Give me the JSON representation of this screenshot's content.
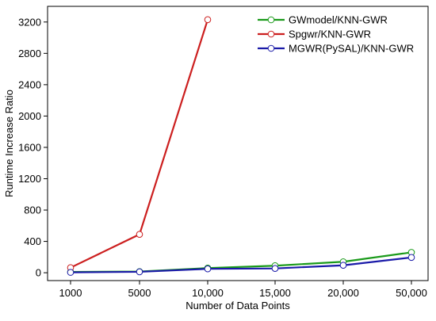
{
  "chart_data": {
    "type": "line",
    "xlabel": "Number of Data Points",
    "ylabel": "Runtime Increase Ratio",
    "categories": [
      "1000",
      "5000",
      "10,000",
      "15,000",
      "20,000",
      "50,000"
    ],
    "ylim": [
      -100,
      3400
    ],
    "yticks": [
      0,
      400,
      800,
      1200,
      1600,
      2000,
      2400,
      2800,
      3200
    ],
    "ytick_labels": [
      "0",
      "400",
      "800",
      "1200",
      "1600",
      "2000",
      "2400",
      "2800",
      "3200"
    ],
    "grid": false,
    "legend_position": "top-right",
    "series": [
      {
        "name": "GWmodel/KNN-GWR",
        "color": "#1a9a1a",
        "values": [
          10,
          15,
          60,
          90,
          140,
          260
        ]
      },
      {
        "name": "Spgwr/KNN-GWR",
        "color": "#cc1f1f",
        "values": [
          65,
          490,
          3230,
          null,
          null,
          null
        ]
      },
      {
        "name": "MGWR(PySAL)/KNN-GWR",
        "color": "#1a1aa8",
        "values": [
          5,
          12,
          50,
          55,
          95,
          195
        ]
      }
    ]
  }
}
